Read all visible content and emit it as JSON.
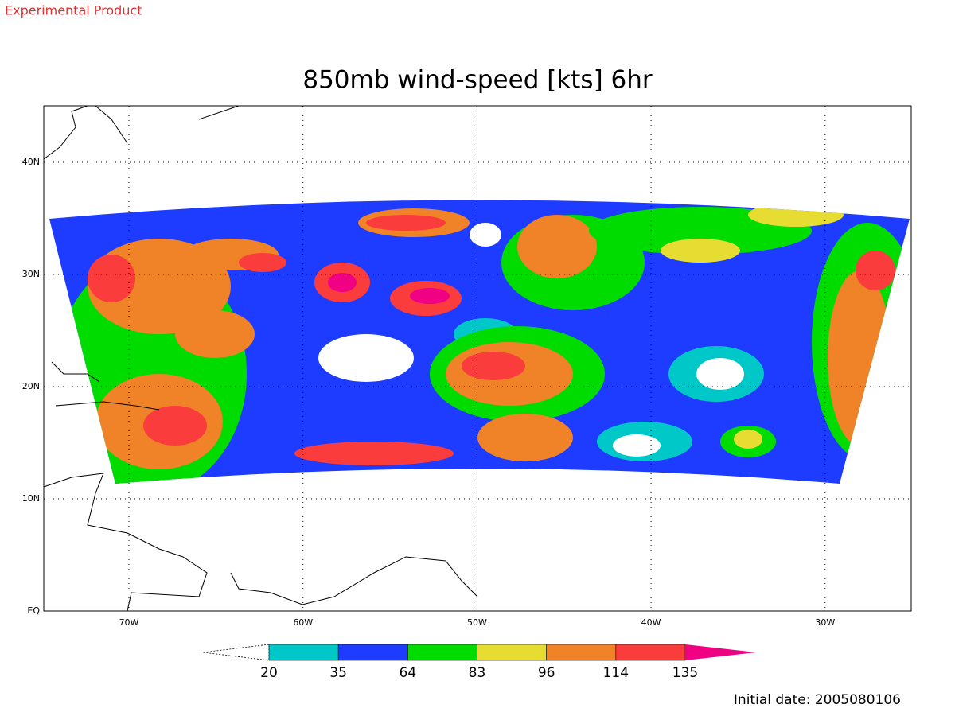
{
  "header": {
    "product_note": "Experimental Product",
    "title": "850mb wind-speed [kts] 6hr"
  },
  "map": {
    "lon_labels": [
      "70W",
      "60W",
      "50W",
      "40W",
      "30W"
    ],
    "lat_labels": [
      "EQ",
      "10N",
      "20N",
      "30N",
      "40N"
    ]
  },
  "colorbar": {
    "levels": [
      20,
      35,
      64,
      83,
      96,
      114,
      135
    ],
    "colors": [
      "#ffffff",
      "#00c8c8",
      "#1e3cff",
      "#00dc00",
      "#e6dc32",
      "#f08228",
      "#fa3c3c",
      "#f00082"
    ]
  },
  "footer": {
    "initial_date": "Initial date: 2005080106"
  }
}
